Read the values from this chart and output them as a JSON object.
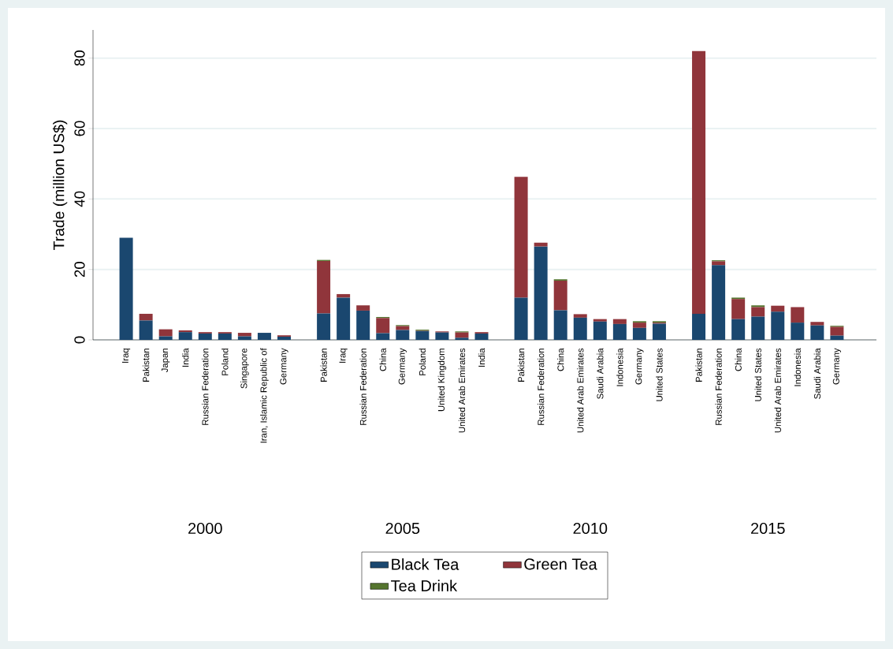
{
  "chart_data": {
    "type": "bar",
    "stacked": true,
    "ylabel": "Trade (million US$)",
    "ylim": [
      0,
      88
    ],
    "yticks": [
      0,
      20,
      40,
      60,
      80
    ],
    "grid": "y",
    "legend": "bottom",
    "categories": [
      "Iraq",
      "Pakistan",
      "Japan",
      "India",
      "Russian Federation",
      "Poland",
      "Singapore",
      "Iran, Islamic Republic of",
      "Germany",
      null,
      "Pakistan",
      "Iraq",
      "Russian Federation",
      "China",
      "Germany",
      "Poland",
      "United Kingdom",
      "United Arab Emirates",
      "India",
      null,
      "Pakistan",
      "Russian Federation",
      "China",
      "United Arab Emirates",
      "Saudi Arabia",
      "Indonesia",
      "Germany",
      "United States",
      null,
      "Pakistan",
      "Russian Federation",
      "China",
      "United States",
      "United Arab Emirates",
      "Indonesia",
      "Saudi Arabia",
      "Germany"
    ],
    "series": [
      {
        "name": "Black Tea",
        "color": "#1a476f",
        "values": [
          29.0,
          5.5,
          1.0,
          2.2,
          1.8,
          1.8,
          1.0,
          2.0,
          0.9,
          null,
          7.5,
          12.0,
          8.3,
          1.9,
          2.8,
          2.5,
          2.1,
          0.6,
          1.8,
          null,
          12.0,
          26.5,
          8.4,
          6.3,
          5.2,
          4.5,
          3.4,
          4.6,
          null,
          7.4,
          21.2,
          5.9,
          6.6,
          8.0,
          4.9,
          4.1,
          1.2
        ]
      },
      {
        "name": "Green Tea",
        "color": "#90353b",
        "values": [
          0,
          1.9,
          2.0,
          0.5,
          0.4,
          0.4,
          1.0,
          0,
          0.4,
          null,
          14.9,
          1.0,
          1.5,
          4.3,
          1.1,
          0.1,
          0.3,
          1.5,
          0.4,
          null,
          34.3,
          1.1,
          8.4,
          1.0,
          0.7,
          1.4,
          1.5,
          0.3,
          null,
          74.6,
          1.1,
          5.7,
          2.7,
          1.7,
          4.4,
          1.0,
          2.5
        ]
      },
      {
        "name": "Tea Drink",
        "color": "#55752f",
        "values": [
          0,
          0,
          0,
          0,
          0,
          0,
          0,
          0,
          0,
          null,
          0.3,
          0,
          0,
          0.3,
          0.3,
          0.3,
          0,
          0.3,
          0,
          null,
          0,
          0,
          0.4,
          0,
          0,
          0,
          0.4,
          0.4,
          null,
          0,
          0.3,
          0.4,
          0.5,
          0,
          0,
          0,
          0.3
        ]
      }
    ],
    "annotations": [
      "2000",
      "2005",
      "2010",
      "2015"
    ]
  }
}
